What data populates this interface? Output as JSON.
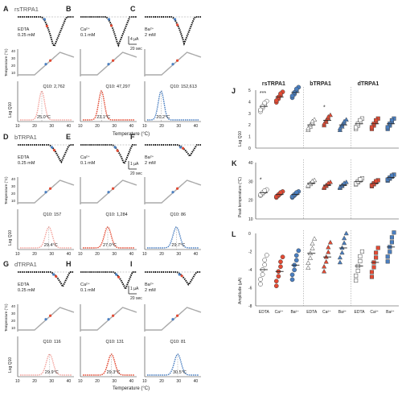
{
  "panels_left": [
    {
      "letter": "A",
      "title": "rsTRPA1",
      "cond": "EDTA",
      "conc": "0.25 mM",
      "q10": "Q10: 2,762",
      "temp": "25.0°C",
      "color": "#f4a6a0",
      "show_title": true
    },
    {
      "letter": "B",
      "title": "",
      "cond": "Ca²⁺",
      "conc": "0.1 mM",
      "q10": "Q10: 47,297",
      "temp": "23.1°C",
      "color": "#e34a33",
      "show_title": false
    },
    {
      "letter": "C",
      "title": "",
      "cond": "Ba²⁺",
      "conc": "2 mM",
      "q10": "Q10: 152,613",
      "temp": "20.2°C",
      "color": "#4a7fc1",
      "show_title": false
    },
    {
      "letter": "D",
      "title": "bTRPA1",
      "cond": "EDTA",
      "conc": "0.25 mM",
      "q10": "Q10: 157",
      "temp": "29.4°C",
      "color": "#f4a6a0",
      "show_title": true
    },
    {
      "letter": "E",
      "title": "",
      "cond": "Ca²⁺",
      "conc": "0.1 mM",
      "q10": "Q10: 1,284",
      "temp": "27.0°C",
      "color": "#e34a33",
      "show_title": false
    },
    {
      "letter": "F",
      "title": "",
      "cond": "Ba²⁺",
      "conc": "2 mM",
      "q10": "Q10: 86",
      "temp": "29.7°C",
      "color": "#4a7fc1",
      "show_title": false
    },
    {
      "letter": "G",
      "title": "dTRPA1",
      "cond": "EDTA",
      "conc": "0.25 mM",
      "q10": "Q10: 116",
      "temp": "29.9°C",
      "color": "#f4a6a0",
      "show_title": true
    },
    {
      "letter": "H",
      "title": "",
      "cond": "Ca²⁺",
      "conc": "0.1 mM",
      "q10": "Q10: 131",
      "temp": "29.3°C",
      "color": "#e34a33",
      "show_title": false
    },
    {
      "letter": "I",
      "title": "",
      "cond": "Ba²⁺",
      "conc": "2 mM",
      "q10": "Q10: 81",
      "temp": "30.5°C",
      "color": "#4a7fc1",
      "show_title": false
    }
  ],
  "left_axis": {
    "temp_label": "Temperature (°C)",
    "logq_label": "Log Q10",
    "x_label": "Temperature (°C)",
    "x_ticks": [
      "10",
      "20",
      "30",
      "40"
    ],
    "temp_ticks": [
      "40",
      "30",
      "20",
      "10"
    ],
    "scale_current": "4 µA",
    "scale_current_2": "1 µA",
    "scale_current_3": "1 µA",
    "scale_time": "20 sec"
  },
  "right": {
    "row_letters": [
      "J",
      "K",
      "L"
    ],
    "groups": [
      "rsTRPA1",
      "bTRPA1",
      "dTRPA1"
    ],
    "xcats": [
      "EDTA",
      "Ca²⁺",
      "Ba²⁺",
      "EDTA",
      "Ca²⁺",
      "Ba²⁺",
      "EDTA",
      "Ca²⁺",
      "Ba²⁺"
    ],
    "J": {
      "ylabel": "Log Q10",
      "yticks": [
        "5",
        "4",
        "3",
        "2",
        "1",
        "0"
      ],
      "stars": [
        "***",
        "*"
      ]
    },
    "K": {
      "ylabel": "Peak temperature (°C)",
      "yticks": [
        "40",
        "30",
        "20",
        "10"
      ],
      "stars": [
        "*"
      ]
    },
    "L": {
      "ylabel": "Amplitude (µA)",
      "yticks": [
        "0",
        "-2",
        "-4",
        "-6",
        "-8"
      ],
      "stars": []
    },
    "colors": {
      "edta": "#ffffff",
      "ca": "#e34a33",
      "ba": "#4a7fc1",
      "stroke": "#444444"
    }
  },
  "chart_data": [
    {
      "type": "scatter",
      "title": "",
      "ylabel": "Log Q10",
      "ylim": [
        0,
        5
      ],
      "categories": [
        "rsTRPA1 EDTA",
        "rsTRPA1 Ca²⁺",
        "rsTRPA1 Ba²⁺",
        "bTRPA1 EDTA",
        "bTRPA1 Ca²⁺",
        "bTRPA1 Ba²⁺",
        "dTRPA1 EDTA",
        "dTRPA1 Ca²⁺",
        "dTRPA1 Ba²⁺"
      ],
      "series": [
        {
          "values": [
            3.6,
            4.4,
            4.8,
            2.0,
            2.4,
            2.0,
            2.1,
            2.1,
            2.1
          ]
        }
      ]
    },
    {
      "type": "scatter",
      "title": "",
      "ylabel": "Peak temperature (°C)",
      "ylim": [
        10,
        40
      ],
      "categories": [
        "rsTRPA1 EDTA",
        "rsTRPA1 Ca²⁺",
        "rsTRPA1 Ba²⁺",
        "bTRPA1 EDTA",
        "bTRPA1 Ca²⁺",
        "bTRPA1 Ba²⁺",
        "dTRPA1 EDTA",
        "dTRPA1 Ca²⁺",
        "dTRPA1 Ba²⁺"
      ],
      "series": [
        {
          "values": [
            24,
            23,
            23,
            29,
            28,
            28,
            30,
            29,
            32
          ]
        }
      ]
    },
    {
      "type": "scatter",
      "title": "",
      "ylabel": "Amplitude (µA)",
      "ylim": [
        -8,
        0
      ],
      "categories": [
        "rsTRPA1 EDTA",
        "rsTRPA1 Ca²⁺",
        "rsTRPA1 Ba²⁺",
        "bTRPA1 EDTA",
        "bTRPA1 Ca²⁺",
        "bTRPA1 Ba²⁺",
        "dTRPA1 EDTA",
        "dTRPA1 Ca²⁺",
        "dTRPA1 Ba²⁺"
      ],
      "series": [
        {
          "values": [
            -4.0,
            -4.2,
            -3.5,
            -2.2,
            -2.6,
            -1.6,
            -3.6,
            -3.2,
            -1.5
          ]
        }
      ]
    }
  ]
}
